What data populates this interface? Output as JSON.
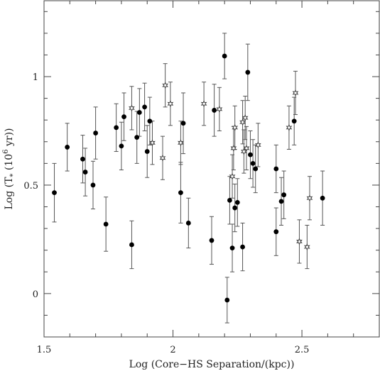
{
  "chart_data": {
    "type": "scatter",
    "title": "",
    "xlabel": "Log (Core−HS Separation/(kpc))",
    "ylabel_parts": {
      "pre": "Log (T",
      "sub": "*",
      "mid": " (10",
      "sup": "6",
      "post": " yr))"
    },
    "xlim": [
      1.5,
      2.8
    ],
    "ylim": [
      -0.2,
      1.35
    ],
    "x_ticks": [
      1.5,
      2,
      2.5
    ],
    "x_tick_labels": [
      "1.5",
      "2",
      "2.5"
    ],
    "y_ticks": [
      0,
      0.5,
      1
    ],
    "y_tick_labels": [
      "0",
      "0.5",
      "1"
    ],
    "grid": false,
    "legend": "none",
    "series": [
      {
        "marker": "filled-circle",
        "points": [
          {
            "x": 1.54,
            "y": 0.465,
            "err": 0.135
          },
          {
            "x": 1.59,
            "y": 0.675,
            "err": 0.11
          },
          {
            "x": 1.65,
            "y": 0.62,
            "err": 0.11
          },
          {
            "x": 1.66,
            "y": 0.56,
            "err": 0.11
          },
          {
            "x": 1.69,
            "y": 0.5,
            "err": 0.11
          },
          {
            "x": 1.7,
            "y": 0.74,
            "err": 0.12
          },
          {
            "x": 1.74,
            "y": 0.32,
            "err": 0.125
          },
          {
            "x": 1.78,
            "y": 0.765,
            "err": 0.11
          },
          {
            "x": 1.8,
            "y": 0.68,
            "err": 0.11
          },
          {
            "x": 1.81,
            "y": 0.815,
            "err": 0.11
          },
          {
            "x": 1.84,
            "y": 0.225,
            "err": 0.11
          },
          {
            "x": 1.86,
            "y": 0.72,
            "err": 0.12
          },
          {
            "x": 1.87,
            "y": 0.835,
            "err": 0.11
          },
          {
            "x": 1.89,
            "y": 0.86,
            "err": 0.11
          },
          {
            "x": 1.9,
            "y": 0.655,
            "err": 0.12
          },
          {
            "x": 1.91,
            "y": 0.795,
            "err": 0.11
          },
          {
            "x": 2.03,
            "y": 0.465,
            "err": 0.14
          },
          {
            "x": 2.04,
            "y": 0.785,
            "err": 0.14
          },
          {
            "x": 2.06,
            "y": 0.325,
            "err": 0.115
          },
          {
            "x": 2.15,
            "y": 0.245,
            "err": 0.11
          },
          {
            "x": 2.16,
            "y": 0.845,
            "err": 0.12
          },
          {
            "x": 2.2,
            "y": 1.095,
            "err": 0.105
          },
          {
            "x": 2.21,
            "y": -0.03,
            "err": 0.105
          },
          {
            "x": 2.22,
            "y": 0.43,
            "err": 0.11
          },
          {
            "x": 2.23,
            "y": 0.21,
            "err": 0.11
          },
          {
            "x": 2.24,
            "y": 0.395,
            "err": 0.11
          },
          {
            "x": 2.25,
            "y": 0.42,
            "err": 0.11
          },
          {
            "x": 2.27,
            "y": 0.215,
            "err": 0.11
          },
          {
            "x": 2.29,
            "y": 1.02,
            "err": 0.13
          },
          {
            "x": 2.3,
            "y": 0.64,
            "err": 0.11
          },
          {
            "x": 2.31,
            "y": 0.6,
            "err": 0.11
          },
          {
            "x": 2.32,
            "y": 0.575,
            "err": 0.11
          },
          {
            "x": 2.4,
            "y": 0.575,
            "err": 0.11
          },
          {
            "x": 2.4,
            "y": 0.285,
            "err": 0.11
          },
          {
            "x": 2.42,
            "y": 0.425,
            "err": 0.11
          },
          {
            "x": 2.43,
            "y": 0.455,
            "err": 0.11
          },
          {
            "x": 2.47,
            "y": 0.795,
            "err": 0.11
          },
          {
            "x": 2.58,
            "y": 0.44,
            "err": 0.125
          }
        ]
      },
      {
        "marker": "open-star",
        "points": [
          {
            "x": 1.84,
            "y": 0.855,
            "err": 0.1
          },
          {
            "x": 1.92,
            "y": 0.695,
            "err": 0.1
          },
          {
            "x": 1.96,
            "y": 0.625,
            "err": 0.1
          },
          {
            "x": 1.97,
            "y": 0.96,
            "err": 0.1
          },
          {
            "x": 1.99,
            "y": 0.875,
            "err": 0.1
          },
          {
            "x": 2.03,
            "y": 0.695,
            "err": 0.1
          },
          {
            "x": 2.12,
            "y": 0.875,
            "err": 0.1
          },
          {
            "x": 2.18,
            "y": 0.85,
            "err": 0.1
          },
          {
            "x": 2.23,
            "y": 0.54,
            "err": 0.1
          },
          {
            "x": 2.235,
            "y": 0.67,
            "err": 0.1
          },
          {
            "x": 2.24,
            "y": 0.765,
            "err": 0.1
          },
          {
            "x": 2.27,
            "y": 0.79,
            "err": 0.1
          },
          {
            "x": 2.275,
            "y": 0.655,
            "err": 0.1
          },
          {
            "x": 2.28,
            "y": 0.81,
            "err": 0.1
          },
          {
            "x": 2.285,
            "y": 0.67,
            "err": 0.1
          },
          {
            "x": 2.33,
            "y": 0.685,
            "err": 0.1
          },
          {
            "x": 2.45,
            "y": 0.765,
            "err": 0.1
          },
          {
            "x": 2.475,
            "y": 0.925,
            "err": 0.1
          },
          {
            "x": 2.49,
            "y": 0.24,
            "err": 0.1
          },
          {
            "x": 2.52,
            "y": 0.215,
            "err": 0.1
          },
          {
            "x": 2.53,
            "y": 0.44,
            "err": 0.1
          }
        ]
      }
    ]
  }
}
